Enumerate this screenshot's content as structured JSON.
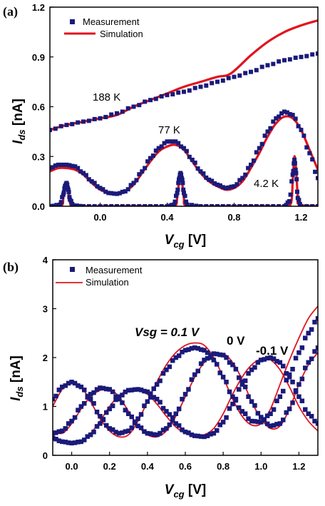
{
  "colors": {
    "measurement": "#1a1a7a",
    "simulation": "#e0141e",
    "axis": "#000000"
  },
  "chart_data": [
    {
      "panel_label": "(a)",
      "type": "scatter",
      "xlabel": {
        "main": "V",
        "sub": "cg",
        "unit": " [V]"
      },
      "ylabel": {
        "main": "I",
        "sub": "ds",
        "unit": " [nA]"
      },
      "xlim": [
        -0.3,
        1.3
      ],
      "ylim": [
        0,
        1.2
      ],
      "xticks": [
        0.0,
        0.4,
        0.8,
        1.2
      ],
      "xtick_labels": [
        "0.0",
        "0.4",
        "0.8",
        "1.2"
      ],
      "yticks": [
        0.0,
        0.3,
        0.6,
        0.9,
        1.2
      ],
      "ytick_labels": [
        "0.0",
        "0.3",
        "0.6",
        "0.9",
        "1.2"
      ],
      "legend": {
        "position": "top-left",
        "entries": [
          "Measurement",
          "Simulation"
        ]
      },
      "annotations": [
        {
          "text": "188 K",
          "x": -0.03,
          "y": 0.62
        },
        {
          "text": "77 K",
          "x": 0.42,
          "y": 0.42
        },
        {
          "text": "4.2 K",
          "x": 0.97,
          "y": 0.12
        }
      ],
      "series": [
        {
          "name": "Measurement",
          "label": "188 K",
          "kind": "markers",
          "x": [
            -0.3,
            -0.2,
            -0.1,
            0.0,
            0.1,
            0.2,
            0.3,
            0.4,
            0.5,
            0.6,
            0.7,
            0.8,
            0.9,
            1.0,
            1.1,
            1.2,
            1.3
          ],
          "y": [
            0.46,
            0.49,
            0.51,
            0.53,
            0.56,
            0.6,
            0.64,
            0.67,
            0.69,
            0.72,
            0.75,
            0.78,
            0.81,
            0.85,
            0.88,
            0.9,
            0.92
          ]
        },
        {
          "name": "Simulation",
          "label": "188 K",
          "kind": "line",
          "x": [
            -0.3,
            -0.2,
            -0.1,
            0.0,
            0.1,
            0.2,
            0.3,
            0.4,
            0.5,
            0.6,
            0.7,
            0.78,
            0.9,
            1.0,
            1.1,
            1.2,
            1.3
          ],
          "y": [
            0.46,
            0.49,
            0.51,
            0.53,
            0.55,
            0.6,
            0.64,
            0.68,
            0.72,
            0.75,
            0.78,
            0.8,
            0.91,
            0.99,
            1.05,
            1.09,
            1.12
          ]
        },
        {
          "name": "Measurement",
          "label": "77 K",
          "kind": "markers",
          "x": [
            -0.3,
            -0.25,
            -0.2,
            -0.15,
            -0.1,
            -0.05,
            0.0,
            0.05,
            0.1,
            0.15,
            0.2,
            0.25,
            0.3,
            0.35,
            0.4,
            0.45,
            0.5,
            0.55,
            0.6,
            0.65,
            0.7,
            0.75,
            0.8,
            0.85,
            0.9,
            0.95,
            1.0,
            1.05,
            1.1,
            1.15,
            1.2,
            1.25,
            1.3
          ],
          "y": [
            0.23,
            0.25,
            0.25,
            0.24,
            0.2,
            0.15,
            0.11,
            0.08,
            0.075,
            0.09,
            0.14,
            0.21,
            0.29,
            0.35,
            0.39,
            0.39,
            0.35,
            0.28,
            0.21,
            0.16,
            0.13,
            0.11,
            0.12,
            0.17,
            0.25,
            0.35,
            0.45,
            0.53,
            0.57,
            0.55,
            0.46,
            0.32,
            0.17
          ]
        },
        {
          "name": "Simulation",
          "label": "77 K",
          "kind": "line",
          "x": [
            -0.3,
            -0.25,
            -0.2,
            -0.15,
            -0.1,
            -0.05,
            0.0,
            0.05,
            0.1,
            0.15,
            0.2,
            0.25,
            0.3,
            0.35,
            0.4,
            0.45,
            0.5,
            0.55,
            0.6,
            0.65,
            0.7,
            0.75,
            0.8,
            0.85,
            0.9,
            0.95,
            1.0,
            1.05,
            1.1,
            1.15,
            1.2,
            1.25,
            1.3
          ],
          "y": [
            0.21,
            0.23,
            0.23,
            0.22,
            0.19,
            0.14,
            0.1,
            0.08,
            0.07,
            0.09,
            0.13,
            0.2,
            0.27,
            0.33,
            0.36,
            0.37,
            0.34,
            0.27,
            0.2,
            0.15,
            0.12,
            0.1,
            0.11,
            0.15,
            0.23,
            0.32,
            0.42,
            0.5,
            0.54,
            0.53,
            0.46,
            0.34,
            0.22
          ]
        },
        {
          "name": "Measurement",
          "label": "4.2 K",
          "kind": "markers",
          "x": [
            -0.3,
            -0.24,
            -0.22,
            -0.21,
            -0.2,
            -0.19,
            -0.18,
            -0.16,
            -0.1,
            0.0,
            0.1,
            0.2,
            0.3,
            0.4,
            0.44,
            0.46,
            0.47,
            0.48,
            0.49,
            0.5,
            0.52,
            0.6,
            0.7,
            0.8,
            0.9,
            1.0,
            1.1,
            1.13,
            1.15,
            1.16,
            1.17,
            1.18,
            1.2,
            1.3
          ],
          "y": [
            0.0,
            0.01,
            0.07,
            0.12,
            0.14,
            0.1,
            0.04,
            0.005,
            0.0,
            0.0,
            0.0,
            0.0,
            0.0,
            0.0,
            0.01,
            0.08,
            0.16,
            0.2,
            0.16,
            0.08,
            0.01,
            0.0,
            0.0,
            0.0,
            0.0,
            0.0,
            0.0,
            0.03,
            0.19,
            0.28,
            0.2,
            0.05,
            0.0,
            0.0
          ]
        },
        {
          "name": "Simulation",
          "label": "4.2 K",
          "kind": "line",
          "x": [
            -0.3,
            -0.23,
            -0.22,
            -0.21,
            -0.2,
            -0.19,
            -0.18,
            -0.17,
            -0.1,
            0.0,
            0.1,
            0.2,
            0.3,
            0.4,
            0.45,
            0.46,
            0.47,
            0.48,
            0.49,
            0.5,
            0.51,
            0.6,
            0.7,
            0.8,
            0.9,
            1.0,
            1.1,
            1.14,
            1.15,
            1.16,
            1.17,
            1.18,
            1.19,
            1.3
          ],
          "y": [
            0.0,
            0.005,
            0.05,
            0.11,
            0.14,
            0.09,
            0.03,
            0.005,
            0.0,
            0.0,
            0.0,
            0.0,
            0.0,
            0.0,
            0.005,
            0.05,
            0.14,
            0.2,
            0.14,
            0.05,
            0.005,
            0.0,
            0.0,
            0.0,
            0.0,
            0.0,
            0.0,
            0.02,
            0.16,
            0.3,
            0.22,
            0.06,
            0.01,
            0.0
          ]
        }
      ]
    },
    {
      "panel_label": "(b)",
      "type": "scatter",
      "xlabel": {
        "main": "V",
        "sub": "cg",
        "unit": " [V]"
      },
      "ylabel": {
        "main": "I",
        "sub": "ds",
        "unit": " [nA]"
      },
      "xlim": [
        -0.1,
        1.3
      ],
      "ylim": [
        0,
        4
      ],
      "xticks": [
        0.0,
        0.2,
        0.4,
        0.6,
        0.8,
        1.0,
        1.2
      ],
      "xtick_labels": [
        "0.0",
        "0.2",
        "0.4",
        "0.6",
        "0.8",
        "1.0",
        "1.2"
      ],
      "yticks": [
        0,
        1,
        2,
        3,
        4
      ],
      "ytick_labels": [
        "0",
        "1",
        "2",
        "3",
        "4"
      ],
      "legend": {
        "position": "top-left",
        "entries": [
          "Measurement",
          "Simulation"
        ]
      },
      "annotations": [
        {
          "text": "Vsg = 0.1 V",
          "x": 0.45,
          "y": 2.45,
          "style": "mixed"
        },
        {
          "text": "0 V",
          "x": 0.82,
          "y": 2.3
        },
        {
          "text": "-0.1 V",
          "x": 1.02,
          "y": 2.2
        }
      ],
      "series": [
        {
          "name": "Measurement",
          "label": "Vsg = 0.1 V",
          "kind": "markers",
          "x": [
            -0.1,
            -0.05,
            0.0,
            0.05,
            0.1,
            0.15,
            0.2,
            0.25,
            0.3,
            0.35,
            0.4,
            0.45,
            0.5,
            0.55,
            0.6,
            0.65,
            0.7,
            0.75,
            0.8,
            0.85,
            0.9,
            0.95,
            1.0,
            1.05,
            1.1,
            1.15,
            1.2,
            1.25,
            1.3
          ],
          "y": [
            1.15,
            1.4,
            1.5,
            1.4,
            1.15,
            0.8,
            0.55,
            0.45,
            0.5,
            0.75,
            1.1,
            1.45,
            1.75,
            2.0,
            2.15,
            2.2,
            2.15,
            1.95,
            1.6,
            1.2,
            0.9,
            0.7,
            0.68,
            0.85,
            1.2,
            1.65,
            2.1,
            2.5,
            2.8
          ]
        },
        {
          "name": "Simulation",
          "label": "Vsg = 0.1 V",
          "kind": "line",
          "x": [
            -0.1,
            -0.05,
            0.0,
            0.05,
            0.1,
            0.15,
            0.2,
            0.25,
            0.3,
            0.35,
            0.4,
            0.45,
            0.5,
            0.55,
            0.6,
            0.65,
            0.7,
            0.75,
            0.8,
            0.85,
            0.9,
            0.95,
            1.0,
            1.05,
            1.1,
            1.15,
            1.2,
            1.25,
            1.3
          ],
          "y": [
            1.0,
            1.35,
            1.5,
            1.4,
            1.1,
            0.75,
            0.5,
            0.38,
            0.42,
            0.7,
            1.1,
            1.5,
            1.85,
            2.1,
            2.25,
            2.3,
            2.25,
            2.0,
            1.6,
            1.15,
            0.8,
            0.62,
            0.65,
            0.95,
            1.45,
            1.95,
            2.4,
            2.8,
            3.05
          ]
        },
        {
          "name": "Measurement",
          "label": "0 V",
          "kind": "markers",
          "x": [
            -0.1,
            -0.05,
            0.0,
            0.05,
            0.1,
            0.15,
            0.2,
            0.25,
            0.3,
            0.35,
            0.4,
            0.45,
            0.5,
            0.55,
            0.6,
            0.65,
            0.7,
            0.75,
            0.8,
            0.85,
            0.9,
            0.95,
            1.0,
            1.05,
            1.1,
            1.15,
            1.2,
            1.25,
            1.3
          ],
          "y": [
            0.45,
            0.5,
            0.7,
            1.0,
            1.25,
            1.38,
            1.35,
            1.15,
            0.85,
            0.6,
            0.45,
            0.42,
            0.55,
            0.85,
            1.25,
            1.65,
            1.95,
            2.08,
            2.05,
            1.85,
            1.5,
            1.1,
            0.78,
            0.6,
            0.65,
            0.95,
            1.45,
            1.9,
            2.2
          ]
        },
        {
          "name": "Simulation",
          "label": "0 V",
          "kind": "line",
          "x": [
            -0.1,
            -0.05,
            0.0,
            0.05,
            0.1,
            0.15,
            0.2,
            0.25,
            0.3,
            0.35,
            0.4,
            0.45,
            0.5,
            0.55,
            0.6,
            0.65,
            0.7,
            0.75,
            0.8,
            0.85,
            0.9,
            0.95,
            1.0,
            1.05,
            1.1,
            1.15,
            1.2,
            1.25,
            1.3
          ],
          "y": [
            0.5,
            0.45,
            0.65,
            0.95,
            1.2,
            1.33,
            1.35,
            1.2,
            0.9,
            0.6,
            0.42,
            0.38,
            0.5,
            0.8,
            1.2,
            1.6,
            1.9,
            2.05,
            2.08,
            1.9,
            1.55,
            1.1,
            0.75,
            0.55,
            0.6,
            0.95,
            1.45,
            1.85,
            2.1
          ]
        },
        {
          "name": "Measurement",
          "label": "-0.1 V",
          "kind": "markers",
          "x": [
            -0.1,
            -0.05,
            0.0,
            0.05,
            0.1,
            0.15,
            0.2,
            0.25,
            0.3,
            0.35,
            0.4,
            0.45,
            0.5,
            0.55,
            0.6,
            0.65,
            0.7,
            0.75,
            0.8,
            0.85,
            0.9,
            0.95,
            1.0,
            1.05,
            1.1,
            1.15,
            1.2,
            1.25,
            1.3
          ],
          "y": [
            0.35,
            0.28,
            0.25,
            0.28,
            0.42,
            0.65,
            0.95,
            1.2,
            1.33,
            1.35,
            1.3,
            1.15,
            0.9,
            0.65,
            0.48,
            0.4,
            0.38,
            0.45,
            0.68,
            1.05,
            1.45,
            1.75,
            1.95,
            2.0,
            1.9,
            1.6,
            1.2,
            0.85,
            0.65
          ]
        },
        {
          "name": "Simulation",
          "label": "-0.1 V",
          "kind": "line",
          "x": [
            -0.1,
            -0.05,
            0.0,
            0.05,
            0.1,
            0.15,
            0.2,
            0.25,
            0.3,
            0.35,
            0.4,
            0.45,
            0.5,
            0.55,
            0.6,
            0.65,
            0.7,
            0.75,
            0.8,
            0.85,
            0.9,
            0.95,
            1.0,
            1.05,
            1.1,
            1.15,
            1.2,
            1.25,
            1.3
          ],
          "y": [
            0.4,
            0.3,
            0.25,
            0.3,
            0.45,
            0.7,
            1.0,
            1.22,
            1.33,
            1.33,
            1.25,
            1.05,
            0.8,
            0.58,
            0.45,
            0.4,
            0.42,
            0.55,
            0.85,
            1.25,
            1.6,
            1.85,
            1.97,
            1.95,
            1.75,
            1.4,
            1.0,
            0.7,
            0.5
          ]
        }
      ]
    }
  ]
}
